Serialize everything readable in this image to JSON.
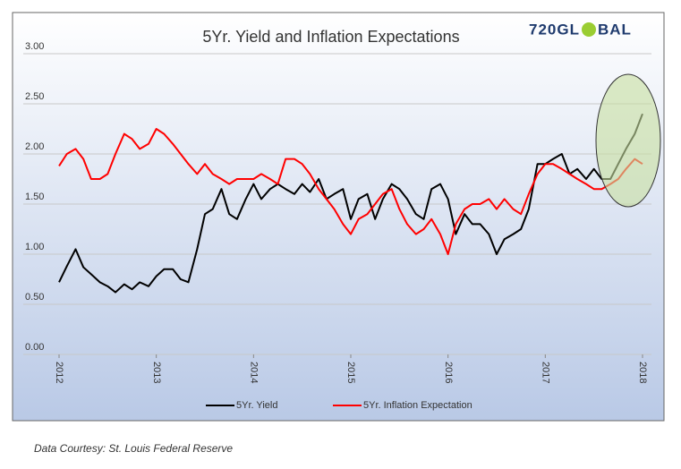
{
  "chart_data": {
    "type": "line",
    "title": "5Yr. Yield and Inflation Expectations",
    "brand_left": "720GL",
    "brand_right": "BAL",
    "source": "Data Courtesy: St. Louis Federal Reserve",
    "x": [
      2012.0,
      2012.08,
      2012.17,
      2012.25,
      2012.33,
      2012.42,
      2012.5,
      2012.58,
      2012.67,
      2012.75,
      2012.83,
      2012.92,
      2013.0,
      2013.08,
      2013.17,
      2013.25,
      2013.33,
      2013.42,
      2013.5,
      2013.58,
      2013.67,
      2013.75,
      2013.83,
      2013.92,
      2014.0,
      2014.08,
      2014.17,
      2014.25,
      2014.33,
      2014.42,
      2014.5,
      2014.58,
      2014.67,
      2014.75,
      2014.83,
      2014.92,
      2015.0,
      2015.08,
      2015.17,
      2015.25,
      2015.33,
      2015.42,
      2015.5,
      2015.58,
      2015.67,
      2015.75,
      2015.83,
      2015.92,
      2016.0,
      2016.08,
      2016.17,
      2016.25,
      2016.33,
      2016.42,
      2016.5,
      2016.58,
      2016.67,
      2016.75,
      2016.83,
      2016.92,
      2017.0,
      2017.08,
      2017.17,
      2017.25,
      2017.33,
      2017.42,
      2017.5,
      2017.58,
      2017.67,
      2017.75,
      2017.83,
      2017.92,
      2018.0
    ],
    "series": [
      {
        "name": "5Yr. Yield",
        "color": "#000000",
        "values": [
          0.72,
          0.88,
          1.05,
          0.87,
          0.8,
          0.72,
          0.68,
          0.62,
          0.7,
          0.65,
          0.72,
          0.68,
          0.78,
          0.85,
          0.85,
          0.75,
          0.72,
          1.05,
          1.4,
          1.45,
          1.65,
          1.4,
          1.35,
          1.55,
          1.7,
          1.55,
          1.65,
          1.7,
          1.65,
          1.6,
          1.7,
          1.62,
          1.75,
          1.55,
          1.6,
          1.65,
          1.35,
          1.55,
          1.6,
          1.35,
          1.55,
          1.7,
          1.65,
          1.55,
          1.4,
          1.35,
          1.65,
          1.7,
          1.55,
          1.2,
          1.4,
          1.3,
          1.3,
          1.2,
          1.0,
          1.15,
          1.2,
          1.25,
          1.45,
          1.9,
          1.9,
          1.95,
          2.0,
          1.8,
          1.85,
          1.75,
          1.85,
          1.75,
          1.75,
          1.9,
          2.05,
          2.2,
          2.4
        ]
      },
      {
        "name": "5Yr. Inflation Expectation",
        "color": "#ff0000",
        "values": [
          1.88,
          2.0,
          2.05,
          1.95,
          1.75,
          1.75,
          1.8,
          2.0,
          2.2,
          2.15,
          2.05,
          2.1,
          2.25,
          2.2,
          2.1,
          2.0,
          1.9,
          1.8,
          1.9,
          1.8,
          1.75,
          1.7,
          1.75,
          1.75,
          1.75,
          1.8,
          1.75,
          1.7,
          1.95,
          1.95,
          1.9,
          1.8,
          1.65,
          1.55,
          1.45,
          1.3,
          1.2,
          1.35,
          1.4,
          1.5,
          1.6,
          1.65,
          1.45,
          1.3,
          1.2,
          1.25,
          1.35,
          1.2,
          1.0,
          1.3,
          1.45,
          1.5,
          1.5,
          1.55,
          1.45,
          1.55,
          1.45,
          1.4,
          1.6,
          1.8,
          1.9,
          1.9,
          1.85,
          1.8,
          1.75,
          1.7,
          1.65,
          1.65,
          1.7,
          1.75,
          1.85,
          1.95,
          1.9
        ]
      }
    ],
    "xlim": [
      2012,
      2018
    ],
    "xticks": [
      2012,
      2013,
      2014,
      2015,
      2016,
      2017,
      2018
    ],
    "ylim": [
      0,
      3
    ],
    "yticks": [
      {
        "value": 0,
        "label": "0.00"
      },
      {
        "value": 0.5,
        "label": "0.50"
      },
      {
        "value": 1,
        "label": "1.00"
      },
      {
        "value": 1.5,
        "label": "1.50"
      },
      {
        "value": 2,
        "label": "2.00"
      },
      {
        "value": 2.5,
        "label": "2.50"
      },
      {
        "value": 3,
        "label": "3.00"
      }
    ],
    "grid": true
  }
}
